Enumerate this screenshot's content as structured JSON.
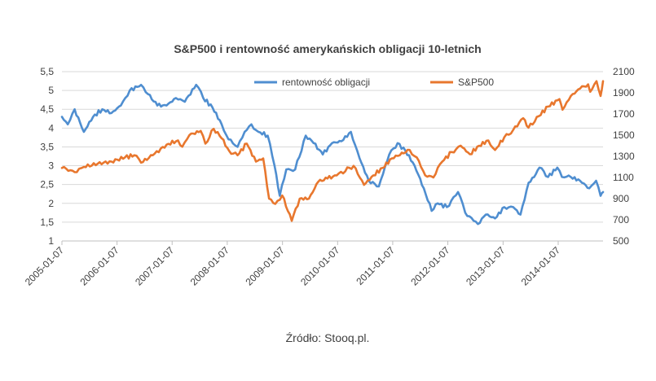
{
  "chart_data": {
    "type": "line",
    "title": "S&P500 i rentowność amerykańskich obligacji 10-letnich",
    "source": "Źródło: Stooq.pl.",
    "x_range": [
      "2005-01-07",
      "2014-10-31"
    ],
    "x_ticks": [
      "2005-01-07",
      "2006-01-07",
      "2007-01-07",
      "2008-01-07",
      "2009-01-07",
      "2010-01-07",
      "2011-01-07",
      "2012-01-07",
      "2013-01-07",
      "2014-01-07"
    ],
    "y_left": {
      "range": [
        1,
        5.5
      ],
      "ticks": [
        "1",
        "1,5",
        "2",
        "2,5",
        "3",
        "3,5",
        "4",
        "4,5",
        "5",
        "5,5"
      ]
    },
    "y_right": {
      "range": [
        500,
        2100
      ],
      "ticks": [
        "500",
        "700",
        "900",
        "1100",
        "1300",
        "1500",
        "1700",
        "1900",
        "2100"
      ]
    },
    "grid": "horizontal",
    "legend": "top-center",
    "series": [
      {
        "name": "rentowność obligacji",
        "axis": "left",
        "color": "#4f8ed0",
        "x": [
          "2005-01-07",
          "2005-02-15",
          "2005-04-01",
          "2005-06-01",
          "2005-08-01",
          "2005-10-01",
          "2005-12-01",
          "2006-02-01",
          "2006-04-01",
          "2006-06-15",
          "2006-08-01",
          "2006-10-01",
          "2006-12-01",
          "2007-02-01",
          "2007-04-01",
          "2007-06-15",
          "2007-08-01",
          "2007-10-01",
          "2007-12-01",
          "2008-01-15",
          "2008-03-15",
          "2008-05-01",
          "2008-06-15",
          "2008-08-01",
          "2008-10-01",
          "2008-11-15",
          "2008-12-20",
          "2009-02-01",
          "2009-04-01",
          "2009-06-10",
          "2009-08-01",
          "2009-10-01",
          "2009-12-01",
          "2010-02-01",
          "2010-04-05",
          "2010-06-01",
          "2010-08-01",
          "2010-10-07",
          "2010-12-15",
          "2011-02-08",
          "2011-04-01",
          "2011-06-01",
          "2011-08-01",
          "2011-09-22",
          "2011-11-01",
          "2012-01-01",
          "2012-03-15",
          "2012-05-01",
          "2012-07-24",
          "2012-09-15",
          "2012-11-15",
          "2013-01-15",
          "2013-03-15",
          "2013-05-02",
          "2013-06-25",
          "2013-08-01",
          "2013-09-05",
          "2013-11-01",
          "2014-01-01",
          "2014-02-01",
          "2014-04-01",
          "2014-06-01",
          "2014-08-01",
          "2014-09-15",
          "2014-10-15",
          "2014-10-31"
        ],
        "values": [
          4.3,
          4.1,
          4.5,
          3.9,
          4.3,
          4.5,
          4.4,
          4.6,
          5.0,
          5.15,
          4.9,
          4.6,
          4.6,
          4.8,
          4.7,
          5.15,
          4.8,
          4.55,
          4.1,
          3.7,
          3.5,
          3.9,
          4.1,
          3.9,
          3.8,
          3.0,
          2.2,
          2.9,
          2.9,
          3.8,
          3.6,
          3.3,
          3.6,
          3.65,
          3.9,
          3.2,
          2.6,
          2.45,
          3.3,
          3.6,
          3.4,
          3.0,
          2.4,
          1.8,
          2.0,
          1.9,
          2.3,
          1.75,
          1.45,
          1.7,
          1.6,
          1.9,
          1.9,
          1.7,
          2.55,
          2.7,
          2.95,
          2.7,
          2.95,
          2.7,
          2.7,
          2.6,
          2.4,
          2.6,
          2.2,
          2.3
        ]
      },
      {
        "name": "S&P500",
        "axis": "right",
        "color": "#e8772e",
        "x": [
          "2005-01-07",
          "2005-04-15",
          "2005-06-01",
          "2005-09-01",
          "2005-12-01",
          "2006-03-01",
          "2006-05-01",
          "2006-06-15",
          "2006-09-01",
          "2006-12-01",
          "2007-02-15",
          "2007-03-15",
          "2007-05-01",
          "2007-07-15",
          "2007-08-15",
          "2007-10-09",
          "2007-12-01",
          "2008-01-20",
          "2008-03-15",
          "2008-05-15",
          "2008-07-15",
          "2008-09-01",
          "2008-10-10",
          "2008-11-20",
          "2009-01-05",
          "2009-03-09",
          "2009-05-01",
          "2009-07-01",
          "2009-09-01",
          "2009-11-01",
          "2010-01-01",
          "2010-04-23",
          "2010-07-01",
          "2010-09-01",
          "2010-11-01",
          "2011-01-01",
          "2011-04-29",
          "2011-06-15",
          "2011-08-10",
          "2011-10-03",
          "2011-12-01",
          "2012-02-01",
          "2012-04-01",
          "2012-06-01",
          "2012-08-01",
          "2012-10-01",
          "2012-11-15",
          "2013-01-15",
          "2013-03-15",
          "2013-05-20",
          "2013-06-24",
          "2013-09-01",
          "2013-11-01",
          "2014-01-15",
          "2014-02-05",
          "2014-04-01",
          "2014-06-01",
          "2014-07-24",
          "2014-08-07",
          "2014-09-18",
          "2014-10-15",
          "2014-10-31"
        ],
        "values": [
          1190,
          1150,
          1200,
          1230,
          1250,
          1290,
          1310,
          1240,
          1310,
          1410,
          1450,
          1390,
          1500,
          1540,
          1420,
          1560,
          1470,
          1350,
          1310,
          1420,
          1250,
          1280,
          900,
          850,
          930,
          690,
          900,
          900,
          1060,
          1090,
          1120,
          1210,
          1030,
          1120,
          1190,
          1280,
          1360,
          1290,
          1120,
          1100,
          1250,
          1340,
          1400,
          1320,
          1400,
          1450,
          1360,
          1480,
          1550,
          1660,
          1570,
          1680,
          1770,
          1840,
          1740,
          1870,
          1940,
          1980,
          1910,
          2010,
          1870,
          2010
        ]
      }
    ]
  }
}
